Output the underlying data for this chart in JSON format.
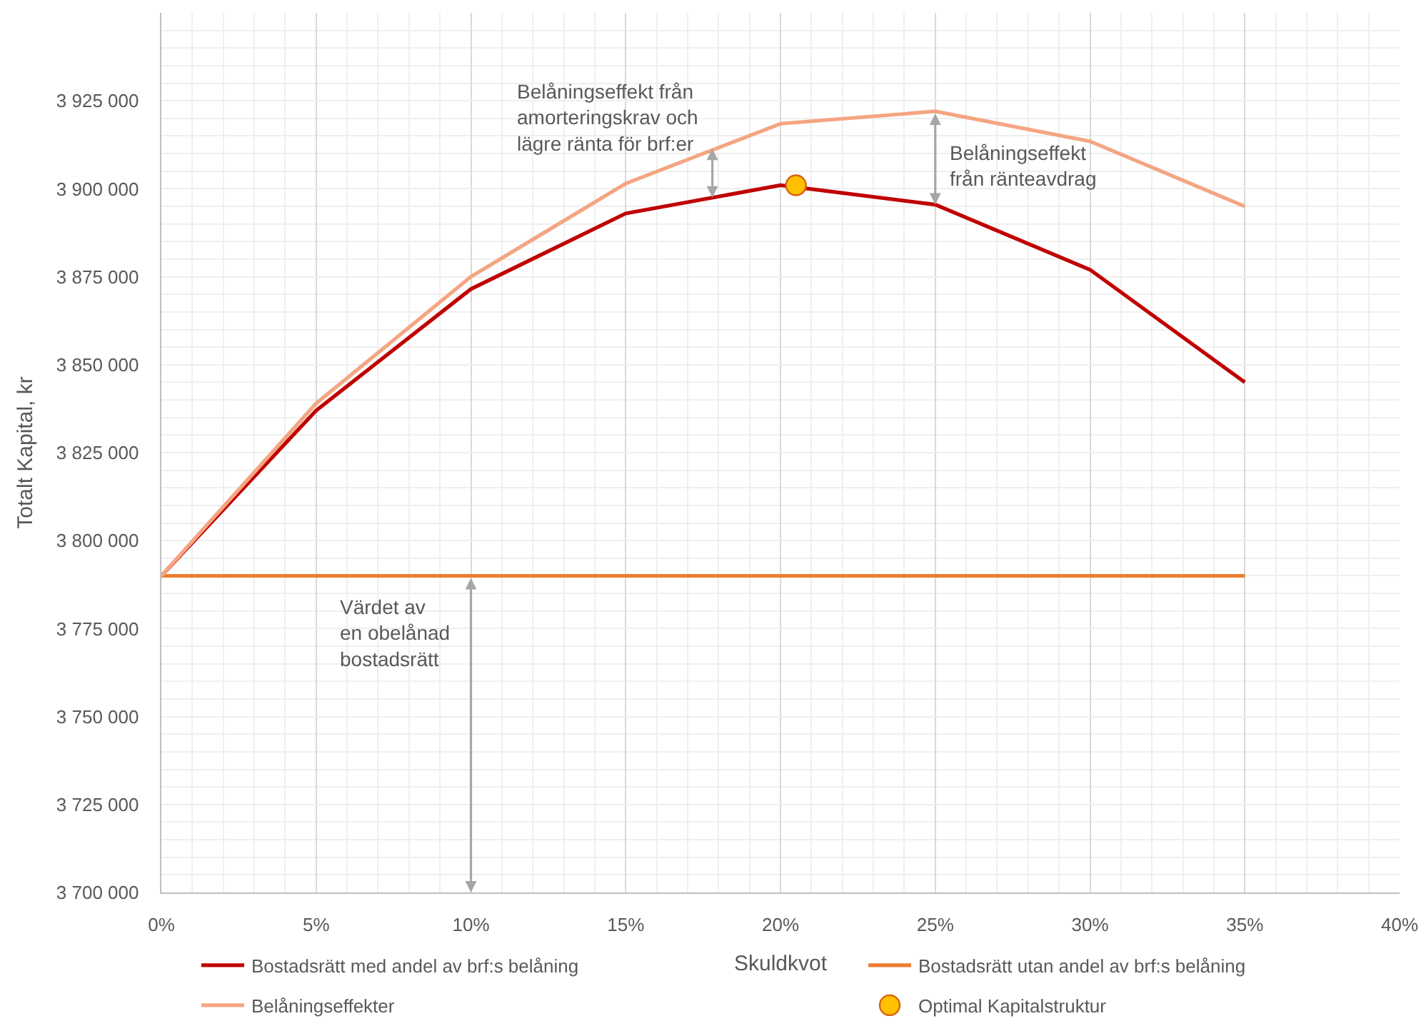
{
  "chart_data": {
    "type": "line",
    "xlabel": "Skuldkvot",
    "ylabel": "Totalt Kapital, kr",
    "x": [
      0,
      5,
      10,
      15,
      20,
      25,
      30,
      35
    ],
    "series": [
      {
        "name": "Bostadsrätt med andel av brf:s belåning",
        "color": "#c00000",
        "values": [
          3790000,
          3837000,
          3871500,
          3893000,
          3901000,
          3895500,
          3877000,
          3845000
        ]
      },
      {
        "name": "Bostadsrätt utan andel av brf:s belåning",
        "color": "#ed7d31",
        "values": [
          3790000,
          3790000,
          3790000,
          3790000,
          3790000,
          3790000,
          3790000,
          3790000
        ]
      },
      {
        "name": "Belåningseffekter",
        "color": "#f4a582",
        "values": [
          3790000,
          3839000,
          3875000,
          3901500,
          3918500,
          3922000,
          3913500,
          3895000
        ]
      },
      {
        "name": "Optimal Kapitalstruktur",
        "type": "scatter",
        "color": "#ffc000",
        "x": [
          20.5
        ],
        "values": [
          3901000
        ]
      }
    ],
    "xlim": [
      0,
      40
    ],
    "xticks": [
      {
        "value": 0,
        "label": "0%"
      },
      {
        "value": 5,
        "label": "5%"
      },
      {
        "value": 10,
        "label": "10%"
      },
      {
        "value": 15,
        "label": "15%"
      },
      {
        "value": 20,
        "label": "20%"
      },
      {
        "value": 25,
        "label": "25%"
      },
      {
        "value": 30,
        "label": "30%"
      },
      {
        "value": 35,
        "label": "35%"
      },
      {
        "value": 40,
        "label": "40%"
      }
    ],
    "ylim": [
      3700000,
      3950000
    ],
    "yticks": [
      {
        "value": 3700000,
        "label": "3 700 000"
      },
      {
        "value": 3725000,
        "label": "3 725 000"
      },
      {
        "value": 3750000,
        "label": "3 750 000"
      },
      {
        "value": 3775000,
        "label": "3 775 000"
      },
      {
        "value": 3800000,
        "label": "3 800 000"
      },
      {
        "value": 3825000,
        "label": "3 825 000"
      },
      {
        "value": 3850000,
        "label": "3 850 000"
      },
      {
        "value": 3875000,
        "label": "3 875 000"
      },
      {
        "value": 3900000,
        "label": "3 900 000"
      },
      {
        "value": 3925000,
        "label": "3 925 000"
      }
    ],
    "annotations": [
      {
        "text": "Belåningseffekt från\namorteringskrav och\nlägre ränta för brf:er",
        "x": 17.8,
        "y": 3912000
      },
      {
        "text": "Belåningseffekt\nfrån ränteavdrag",
        "x": 25,
        "y": 3922000
      },
      {
        "text": "Värdet av\nen obelånad\nbostadsrätt",
        "x": 10,
        "y": 3790000
      }
    ],
    "grid": true,
    "legend": "bottom"
  }
}
